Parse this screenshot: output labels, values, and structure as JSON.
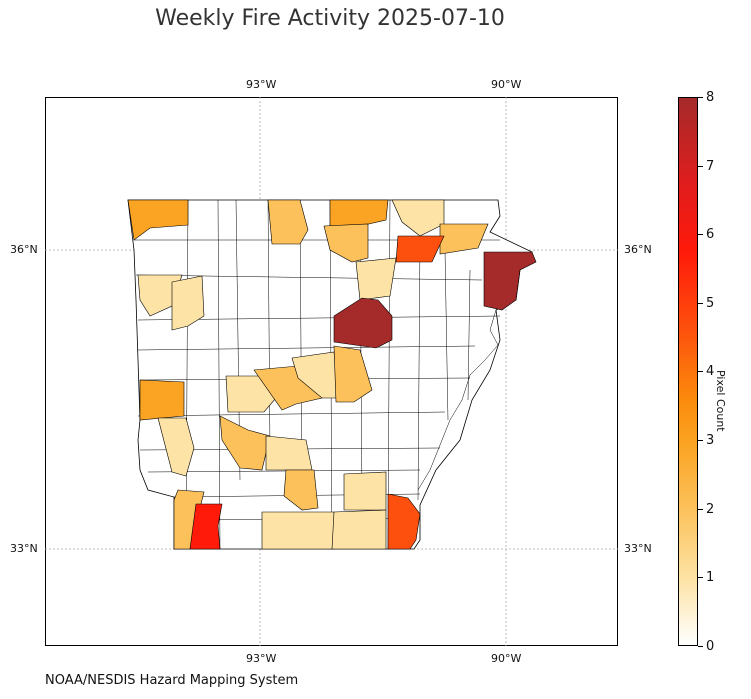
{
  "title": "Weekly Fire Activity 2025-07-10",
  "credit": "NOAA/NESDIS Hazard Mapping System",
  "lon_labels": [
    "93°W",
    "90°W"
  ],
  "lat_labels": [
    "36°N",
    "33°N"
  ],
  "colorbar": {
    "label": "Pixel Count",
    "ticks": [
      "0",
      "1",
      "2",
      "3",
      "4",
      "5",
      "6",
      "7",
      "8"
    ],
    "min": 0,
    "max": 8,
    "colors": [
      "#ffffff",
      "#fde3a6",
      "#fcc15a",
      "#fba322",
      "#fb8a0c",
      "#fd4f0d",
      "#ff1a0a",
      "#e11d1d",
      "#a52a2a"
    ]
  },
  "fire_counts": {
    "benton": 3,
    "carroll": 2,
    "boone_area": 3,
    "randolph_area": 1,
    "clay": 2,
    "greene_area": 5,
    "crawford": 1,
    "franklin": 1,
    "mississippi": 8,
    "jackson_area": 8,
    "sebastian": 3,
    "polk": 1,
    "montgomery": 2,
    "perry": 1,
    "conway_area": 2,
    "faulkner": 1,
    "white": 2,
    "garland": 2,
    "hot_spring": 1,
    "sharp_area": 1,
    "miller": 2,
    "lafayette": 6,
    "drew_area": 1,
    "union": 1,
    "ashley": 1,
    "chicot": 5,
    "cleveland": 2
  }
}
